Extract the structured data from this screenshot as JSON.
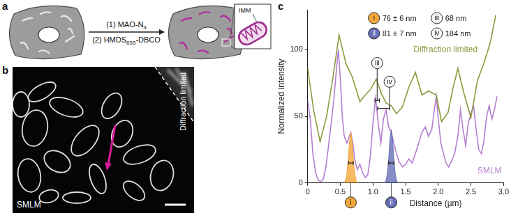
{
  "panel_a": {
    "letter": "a",
    "step_1": {
      "number": "(1)",
      "reagent": "MAO-N",
      "subscript": "3"
    },
    "step_2": {
      "number": "(2)",
      "reagent": "HMDS",
      "subscript": "655",
      "suffix": "-DBCO"
    },
    "inset_label": "IMM"
  },
  "panel_b": {
    "letter": "b",
    "left_label": "SMLM",
    "right_label": "Diffraction limited"
  },
  "chart_data": {
    "letter": "c",
    "type": "line",
    "xlabel": "Distance (µm)",
    "ylabel": "Normalized intensity",
    "xlim": [
      0,
      3
    ],
    "ylim": [
      0,
      130
    ],
    "xticks": [
      0,
      0.5,
      {
        "value": 1,
        "label": "1.0"
      },
      1.5,
      {
        "value": 2,
        "label": "2.0"
      },
      2.5,
      {
        "value": 3,
        "label": "3.0"
      }
    ],
    "yticks": [
      0,
      50,
      100
    ],
    "grid": false,
    "series": [
      {
        "name": "Diffraction limited",
        "color": "#8c9a3c",
        "x": [
          0,
          0.09,
          0.19,
          0.29,
          0.39,
          0.48,
          0.59,
          0.68,
          0.8,
          0.88,
          0.96,
          1.05,
          1.13,
          1.2,
          1.28,
          1.36,
          1.45,
          1.55,
          1.65,
          1.75,
          1.85,
          1.97,
          2.05,
          2.15,
          2.22,
          2.3,
          2.4,
          2.5,
          2.6,
          2.7,
          2.8,
          2.88
        ],
        "values": [
          86,
          55,
          31,
          50,
          80,
          111,
          89,
          80,
          61,
          66,
          70,
          78,
          67,
          60,
          58,
          52,
          57,
          72,
          83,
          66,
          69,
          66,
          46,
          53,
          70,
          86,
          66,
          49,
          77,
          90,
          106,
          126
        ]
      },
      {
        "name": "SMLM",
        "color": "#b57dd0",
        "x": [
          0,
          0.04,
          0.08,
          0.12,
          0.16,
          0.2,
          0.24,
          0.28,
          0.32,
          0.36,
          0.4,
          0.44,
          0.47,
          0.5,
          0.53,
          0.56,
          0.6,
          0.63,
          0.66,
          0.69,
          0.72,
          0.76,
          0.8,
          0.84,
          0.88,
          0.92,
          0.96,
          1.0,
          1.04,
          1.08,
          1.12,
          1.16,
          1.2,
          1.24,
          1.28,
          1.32,
          1.36,
          1.4,
          1.45,
          1.5,
          1.55,
          1.6,
          1.65,
          1.7,
          1.75,
          1.8,
          1.85,
          1.9,
          1.94,
          1.97,
          2.0,
          2.04,
          2.08,
          2.12,
          2.16,
          2.2,
          2.25,
          2.3,
          2.34,
          2.38,
          2.42,
          2.46,
          2.5,
          2.54,
          2.58,
          2.62,
          2.66,
          2.7,
          2.74,
          2.78,
          2.82,
          2.86,
          2.9
        ],
        "values": [
          62,
          48,
          22,
          8,
          2,
          1,
          3,
          12,
          28,
          45,
          62,
          85,
          100,
          78,
          50,
          35,
          30,
          34,
          38,
          30,
          18,
          10,
          14,
          8,
          4,
          6,
          20,
          45,
          64,
          45,
          30,
          48,
          55,
          42,
          38,
          30,
          22,
          16,
          12,
          14,
          18,
          15,
          22,
          30,
          38,
          42,
          35,
          40,
          55,
          65,
          48,
          30,
          22,
          15,
          12,
          16,
          22,
          35,
          55,
          40,
          28,
          45,
          52,
          58,
          40,
          25,
          22,
          32,
          50,
          58,
          48,
          55,
          65
        ]
      },
      {
        "name": "i",
        "type": "area",
        "color": "#f2a93b",
        "x": [
          0.56,
          0.58,
          0.6,
          0.62,
          0.64,
          0.66,
          0.68,
          0.7,
          0.72,
          0.74,
          0.76
        ],
        "values": [
          0,
          2,
          7,
          17,
          31,
          38,
          31,
          17,
          7,
          2,
          0
        ]
      },
      {
        "name": "ii",
        "type": "area",
        "color": "#6670b8",
        "x": [
          1.18,
          1.2,
          1.22,
          1.24,
          1.26,
          1.28,
          1.3,
          1.32,
          1.34,
          1.36,
          1.38
        ],
        "values": [
          0,
          2,
          7,
          18,
          33,
          40,
          33,
          18,
          7,
          2,
          0
        ]
      }
    ],
    "measurements": [
      {
        "label": "i",
        "text": "76 ± 6 nm",
        "x_start": 0.622,
        "x_end": 0.698,
        "y": 15
      },
      {
        "label": "ii",
        "text": "81 ± 7 nm",
        "x_start": 1.24,
        "x_end": 1.321,
        "y": 15
      },
      {
        "label": "iii",
        "text": "68 nm",
        "x_start": 1.03,
        "x_end": 1.098,
        "y": 62
      },
      {
        "label": "iv",
        "text": "184 nm",
        "x_start": 1.07,
        "x_end": 1.254,
        "y": 56
      }
    ]
  }
}
